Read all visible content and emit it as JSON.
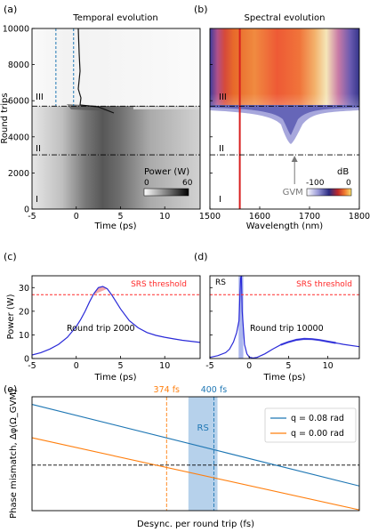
{
  "colors": {
    "blue": "#2a2ad8",
    "red": "#ff2a2a",
    "orange": "#ff7f0e",
    "tab_blue": "#1f77b4",
    "rs_band": "#a9c9e8"
  },
  "chart_data": [
    {
      "panel": "(a)",
      "type": "heatmap",
      "title": "Temporal evolution",
      "xlabel": "Time (ps)",
      "ylabel": "Round trips",
      "xlim": [
        -5,
        14
      ],
      "ylim": [
        0,
        10000
      ],
      "xticks": [
        -5,
        0,
        5,
        10
      ],
      "yticks": [
        0,
        2000,
        4000,
        6000,
        8000,
        10000
      ],
      "regions": [
        "I",
        "II",
        "III"
      ],
      "region_boundaries": [
        3000,
        5700
      ],
      "colorbar": {
        "label": "Power (W)",
        "min": 0,
        "max": 60
      },
      "window_lines": [
        -2.3,
        -0.3
      ]
    },
    {
      "panel": "(b)",
      "type": "heatmap",
      "title": "Spectral evolution",
      "xlabel": "Wavelength (nm)",
      "xlim": [
        1500,
        1800
      ],
      "ylim": [
        0,
        10000
      ],
      "xticks": [
        1500,
        1600,
        1700,
        1800
      ],
      "regions": [
        "I",
        "II",
        "III"
      ],
      "region_boundaries": [
        3000,
        5700
      ],
      "pump_wavelength": 1560,
      "annotation": "GVM",
      "annotation_wavelength": 1670,
      "colorbar": {
        "label": "dB",
        "min": -100,
        "max": 0
      }
    },
    {
      "panel": "(c)",
      "type": "line",
      "ylabel": "Power (W)",
      "xlabel": "Time (ps)",
      "xlim": [
        -5,
        14
      ],
      "ylim": [
        0,
        35
      ],
      "xticks": [
        -5,
        0,
        5,
        10
      ],
      "yticks": [
        0,
        10,
        20,
        30
      ],
      "threshold": 27,
      "threshold_label": "SRS threshold",
      "annotation": "Round trip 2000",
      "x": [
        -5,
        -4,
        -3,
        -2,
        -1,
        0,
        0.5,
        1,
        1.5,
        2,
        2.5,
        3,
        3.5,
        4,
        4.5,
        5,
        6,
        7,
        8,
        9,
        10,
        11,
        12,
        14
      ],
      "y": [
        1.5,
        2.5,
        4,
        6,
        9,
        13.5,
        16.5,
        20,
        24,
        27.5,
        30,
        30.5,
        29.5,
        27,
        24,
        21,
        16,
        13,
        11,
        9.8,
        9,
        8.3,
        7.7,
        6.8
      ]
    },
    {
      "panel": "(d)",
      "type": "line",
      "xlabel": "Time (ps)",
      "xlim": [
        -5,
        14
      ],
      "ylim": [
        0,
        35
      ],
      "xticks": [
        -5,
        0,
        5,
        10
      ],
      "threshold": 27,
      "threshold_label": "SRS threshold",
      "annotation": "Round trip 10000",
      "rs_label": "RS",
      "x": [
        -5,
        -4,
        -3,
        -2.5,
        -2,
        -1.6,
        -1.3,
        -1.1,
        -1,
        -0.9,
        -0.6,
        -0.3,
        0,
        0.5,
        1,
        2,
        3,
        4,
        5,
        6,
        7,
        8,
        9,
        10,
        11,
        12,
        14
      ],
      "y": [
        0.5,
        1.2,
        2.5,
        4,
        7,
        11,
        16,
        34,
        35,
        20,
        6,
        2,
        0.6,
        0.2,
        0.5,
        2,
        4,
        5.8,
        7,
        7.9,
        8.3,
        8.2,
        7.8,
        7.2,
        6.6,
        6,
        5
      ]
    },
    {
      "panel": "(e)",
      "type": "line",
      "xlabel": "Desync. per round trip (fs)",
      "ylabel": "Phase mismatch, Δφ(Ω_GVM)",
      "series": [
        {
          "name": "q = 0.08 rad",
          "color": "#1f77b4",
          "x": [
            300,
            480
          ],
          "y": [
            1.6,
            -0.55
          ]
        },
        {
          "name": "q = 0.00 rad",
          "color": "#ff7f0e",
          "x": [
            300,
            480
          ],
          "y": [
            0.72,
            -1.18
          ]
        }
      ],
      "xlim": [
        300,
        480
      ],
      "ylim": [
        -1.2,
        1.8
      ],
      "vlines": [
        {
          "label": "374 fs",
          "x": 374,
          "color": "#ff7f0e"
        },
        {
          "label": "400 fs",
          "x": 400,
          "color": "#1f77b4"
        }
      ],
      "rs_band": {
        "label": "RS",
        "from": 386,
        "to": 402
      },
      "zero_line": 0,
      "legend_position": "top-right"
    }
  ]
}
